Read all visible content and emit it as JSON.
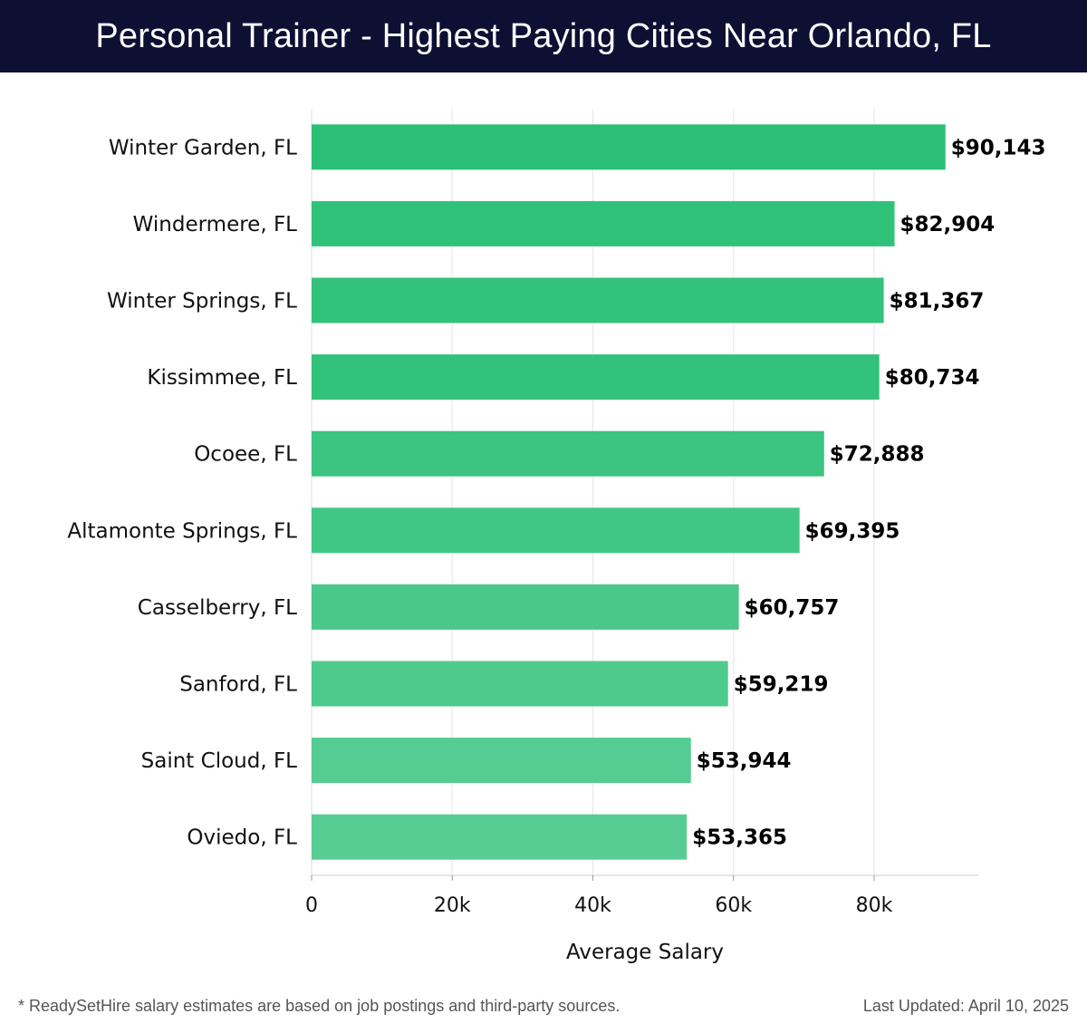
{
  "header": {
    "title": "Personal Trainer - Highest Paying Cities Near Orlando, FL"
  },
  "chart_data": {
    "type": "bar",
    "orientation": "horizontal",
    "title": "Personal Trainer - Highest Paying Cities Near Orlando, FL",
    "xlabel": "Average Salary",
    "ylabel": "",
    "xlim": [
      0,
      95000
    ],
    "grid": true,
    "xticks": [
      0,
      20000,
      40000,
      60000,
      80000
    ],
    "xtick_labels": [
      "0",
      "20k",
      "40k",
      "60k",
      "80k"
    ],
    "categories": [
      "Winter Garden, FL",
      "Windermere, FL",
      "Winter Springs, FL",
      "Kissimmee, FL",
      "Ocoee, FL",
      "Altamonte Springs, FL",
      "Casselberry, FL",
      "Sanford, FL",
      "Saint Cloud, FL",
      "Oviedo, FL"
    ],
    "values": [
      90143,
      82904,
      81367,
      80734,
      72888,
      69395,
      60757,
      59219,
      53944,
      53365
    ],
    "value_labels": [
      "$90,143",
      "$82,904",
      "$81,367",
      "$80,734",
      "$72,888",
      "$69,395",
      "$60,757",
      "$59,219",
      "$53,944",
      "$53,365"
    ],
    "bar_colors": [
      "#2bbf76",
      "#31c27a",
      "#33c27b",
      "#33c27b",
      "#3bc581",
      "#40c785",
      "#4ac88a",
      "#4dca8c",
      "#55cc92",
      "#57cd93"
    ]
  },
  "footer": {
    "note": "* ReadySetHire salary estimates are based on job postings and third-party sources.",
    "updated": "Last Updated: April 10, 2025"
  }
}
